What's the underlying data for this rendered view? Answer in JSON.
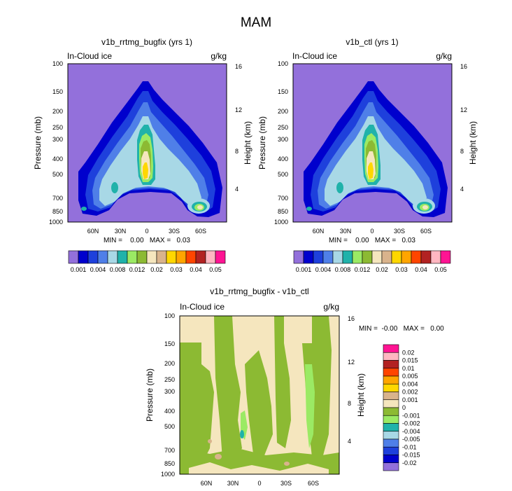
{
  "suptitle": "MAM",
  "colors": {
    "ctrl": [
      "#9370db",
      "#0000cd",
      "#1e40dc",
      "#4f7fe8",
      "#a8d8e6",
      "#20b2aa",
      "#9bea64",
      "#8cba33",
      "#f5e6be",
      "#d9b38c",
      "#ffd700",
      "#ffa500",
      "#ff4500",
      "#b22222",
      "#ffb6c1",
      "#ff1493"
    ],
    "diff": [
      "#9370db",
      "#0000cd",
      "#1e40dc",
      "#4f7fe8",
      "#a8d8e6",
      "#20b2aa",
      "#9bea64",
      "#8cba33",
      "#f5e6be",
      "#d9b38c",
      "#ffd700",
      "#ffa500",
      "#ff4500",
      "#b22222",
      "#ffb6c1",
      "#ff1493"
    ]
  },
  "chart_data": [
    {
      "type": "contour",
      "title": "v1b_rrtmg_bugfix (yrs 1)",
      "left_label": "In-Cloud ice",
      "right_label": "g/kg",
      "ylabel": "Pressure (mb)",
      "ylabel_right": "Height (km)",
      "pressure_ticks": [
        "100",
        "150",
        "200",
        "250",
        "300",
        "400",
        "500",
        "700",
        "850",
        "1000"
      ],
      "height_ticks": [
        "16",
        "12",
        "8",
        "4"
      ],
      "lat_ticks": [
        "60N",
        "30N",
        "0",
        "30S",
        "60S"
      ],
      "minmax": "MIN =    0.00   MAX =   0.03",
      "colorbar_labels": [
        "0.001",
        "0.004",
        "0.008",
        "0.012",
        "0.02",
        "0.03",
        "0.04",
        "0.05"
      ]
    },
    {
      "type": "contour",
      "title": "v1b_ctl (yrs 1)",
      "left_label": "In-Cloud ice",
      "right_label": "g/kg",
      "ylabel": "Pressure (mb)",
      "ylabel_right": "Height (km)",
      "pressure_ticks": [
        "100",
        "150",
        "200",
        "250",
        "300",
        "400",
        "500",
        "700",
        "850",
        "1000"
      ],
      "height_ticks": [
        "16",
        "12",
        "8",
        "4"
      ],
      "lat_ticks": [
        "60N",
        "30N",
        "0",
        "30S",
        "60S"
      ],
      "minmax": "MIN =    0.00   MAX =   0.03",
      "colorbar_labels": [
        "0.001",
        "0.004",
        "0.008",
        "0.012",
        "0.02",
        "0.03",
        "0.04",
        "0.05"
      ]
    },
    {
      "type": "contour",
      "title": "v1b_rrtmg_bugfix - v1b_ctl",
      "left_label": "In-Cloud ice",
      "right_label": "g/kg",
      "ylabel": "Pressure (mb)",
      "ylabel_right": "Height (km)",
      "pressure_ticks": [
        "100",
        "150",
        "200",
        "250",
        "300",
        "400",
        "500",
        "700",
        "850",
        "1000"
      ],
      "height_ticks": [
        "16",
        "12",
        "8",
        "4"
      ],
      "lat_ticks": [
        "60N",
        "30N",
        "0",
        "30S",
        "60S"
      ],
      "minmax": "MIN =  -0.00   MAX =   0.00",
      "colorbar_labels": [
        "0.02",
        "0.015",
        "0.01",
        "0.005",
        "0.004",
        "0.002",
        "0.001",
        "0",
        "-0.001",
        "-0.002",
        "-0.004",
        "-0.005",
        "-0.01",
        "-0.015",
        "-0.02"
      ]
    }
  ]
}
